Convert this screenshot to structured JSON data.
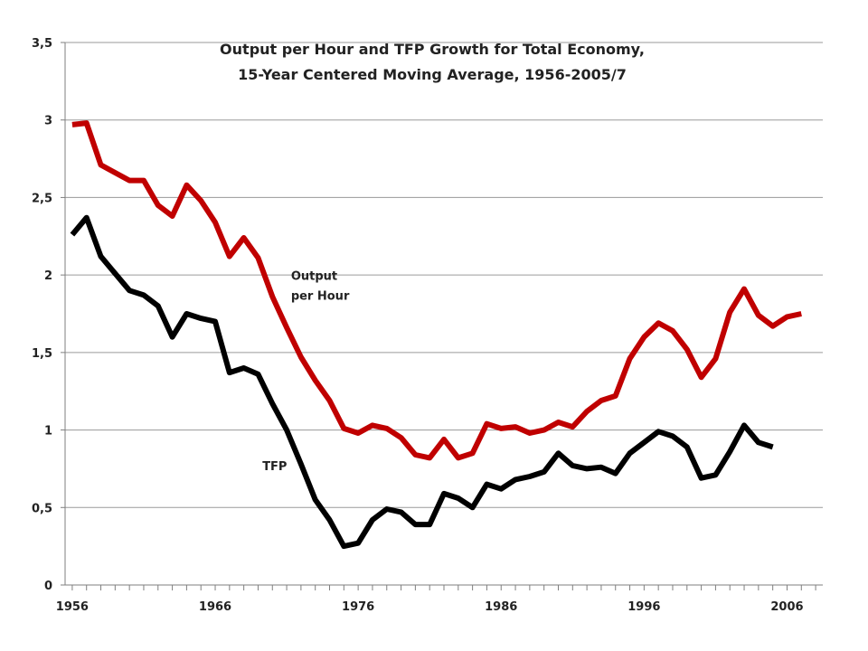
{
  "chart_data": {
    "type": "line",
    "title": "Output per Hour and TFP Growth for Total Economy,",
    "subtitle": "15-Year Centered Moving Average, 1956-2005/7",
    "xlabel": "",
    "ylabel": "",
    "xlim": [
      1955.5,
      2008.5
    ],
    "ylim": [
      0,
      3.5
    ],
    "x_ticks": [
      1956,
      1966,
      1976,
      1986,
      1996,
      2006
    ],
    "x_tick_labels": [
      "1956",
      "1966",
      "1976",
      "1986",
      "1996",
      "2006"
    ],
    "y_ticks": [
      0,
      0.5,
      1,
      1.5,
      2,
      2.5,
      3,
      3.5
    ],
    "y_tick_labels": [
      "0",
      "0,5",
      "1",
      "1,5",
      "2",
      "2,5",
      "3",
      "3,5"
    ],
    "grid": true,
    "legend": "none",
    "series": [
      {
        "name": "Output per Hour",
        "color": "#c00000",
        "x": [
          1956,
          1957,
          1958,
          1959,
          1960,
          1961,
          1962,
          1963,
          1964,
          1965,
          1966,
          1967,
          1968,
          1969,
          1970,
          1971,
          1972,
          1973,
          1974,
          1975,
          1976,
          1977,
          1978,
          1979,
          1980,
          1981,
          1982,
          1983,
          1984,
          1985,
          1986,
          1987,
          1988,
          1989,
          1990,
          1991,
          1992,
          1993,
          1994,
          1995,
          1996,
          1997,
          1998,
          1999,
          2000,
          2001,
          2002,
          2003,
          2004,
          2005,
          2006,
          2007
        ],
        "values": [
          2.97,
          2.98,
          2.71,
          2.66,
          2.61,
          2.61,
          2.45,
          2.38,
          2.58,
          2.48,
          2.34,
          2.12,
          2.24,
          2.11,
          1.86,
          1.66,
          1.47,
          1.32,
          1.19,
          1.01,
          0.98,
          1.03,
          1.01,
          0.95,
          0.84,
          0.82,
          0.94,
          0.82,
          0.85,
          1.04,
          1.01,
          1.02,
          0.98,
          1.0,
          1.05,
          1.02,
          1.12,
          1.19,
          1.22,
          1.46,
          1.6,
          1.69,
          1.64,
          1.52,
          1.34,
          1.46,
          1.76,
          1.91,
          1.74,
          1.67,
          1.73,
          1.75
        ]
      },
      {
        "name": "TFP",
        "color": "#000000",
        "x": [
          1956,
          1957,
          1958,
          1959,
          1960,
          1961,
          1962,
          1963,
          1964,
          1965,
          1966,
          1967,
          1968,
          1969,
          1970,
          1971,
          1972,
          1973,
          1974,
          1975,
          1976,
          1977,
          1978,
          1979,
          1980,
          1981,
          1982,
          1983,
          1984,
          1985,
          1986,
          1987,
          1988,
          1989,
          1990,
          1991,
          1992,
          1993,
          1994,
          1995,
          1996,
          1997,
          1998,
          1999,
          2000,
          2001,
          2002,
          2003,
          2004,
          2005
        ],
        "values": [
          2.26,
          2.37,
          2.12,
          2.01,
          1.9,
          1.87,
          1.8,
          1.6,
          1.75,
          1.72,
          1.7,
          1.37,
          1.4,
          1.36,
          1.17,
          1.0,
          0.78,
          0.55,
          0.42,
          0.25,
          0.27,
          0.42,
          0.49,
          0.47,
          0.39,
          0.39,
          0.59,
          0.56,
          0.5,
          0.65,
          0.62,
          0.68,
          0.7,
          0.73,
          0.85,
          0.77,
          0.75,
          0.76,
          0.72,
          0.85,
          0.92,
          0.99,
          0.96,
          0.89,
          0.69,
          0.71,
          0.86,
          1.03,
          0.92,
          0.89
        ]
      }
    ],
    "annotations": [
      {
        "lines": [
          "Output",
          "per Hour"
        ],
        "x": 1971.3,
        "y": 1.97
      },
      {
        "lines": [
          "TFP"
        ],
        "x": 1969.3,
        "y": 0.74
      }
    ]
  }
}
